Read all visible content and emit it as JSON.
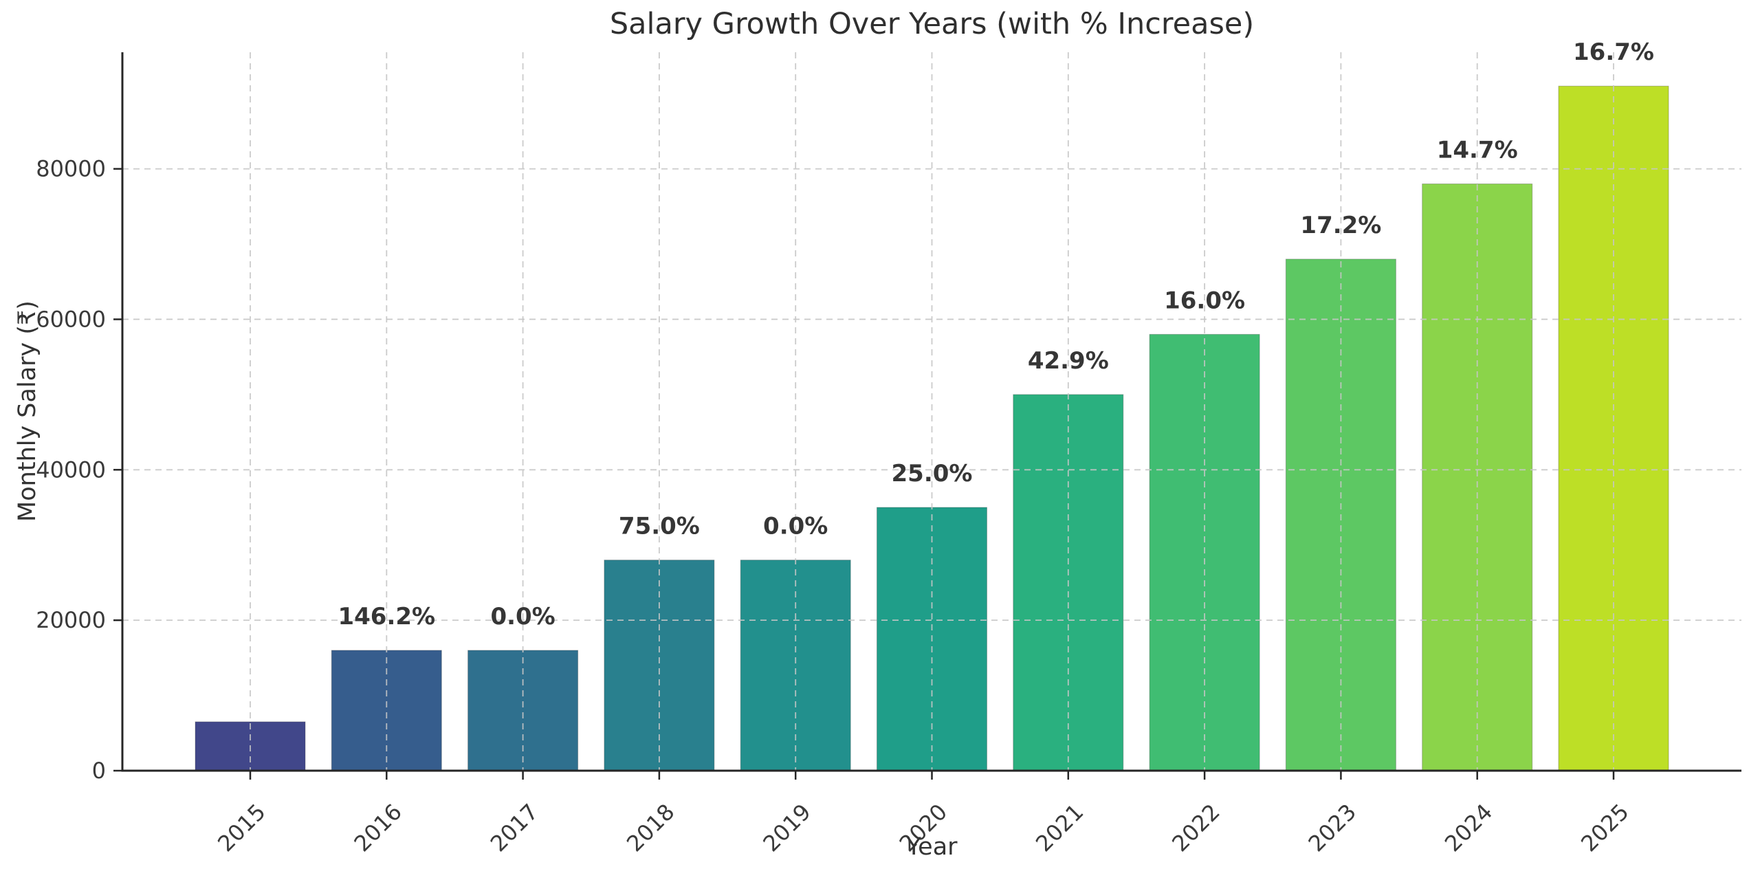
{
  "chart_data": {
    "type": "bar",
    "title": "Salary Growth Over Years (with % Increase)",
    "xlabel": "Year",
    "ylabel": "Monthly Salary (₹)",
    "categories": [
      "2015",
      "2016",
      "2017",
      "2018",
      "2019",
      "2020",
      "2021",
      "2022",
      "2023",
      "2024",
      "2025"
    ],
    "values": [
      6500,
      16000,
      16000,
      28000,
      28000,
      35000,
      50000,
      58000,
      68000,
      78000,
      91000
    ],
    "bar_labels": [
      "",
      "146.2%",
      "0.0%",
      "75.0%",
      "0.0%",
      "25.0%",
      "42.9%",
      "16.0%",
      "17.2%",
      "14.7%",
      "16.7%"
    ],
    "bar_colors": [
      "#41478a",
      "#365d8d",
      "#2f708e",
      "#29808e",
      "#22908d",
      "#1f9e89",
      "#2ab07f",
      "#40bd72",
      "#5dc863",
      "#8bd44a",
      "#bddf26"
    ],
    "yticks": [
      0,
      20000,
      40000,
      60000,
      80000
    ],
    "ylim": [
      0,
      95500
    ],
    "x_tick_rotation": 45,
    "grid": "dashed gridlines, horizontal and vertical, drawn over bars",
    "legend": "none",
    "colors": {
      "background": "#ffffff",
      "axis": "#262626",
      "grid": "#c6c6c6",
      "tick_text": "#3a3a3a",
      "bar_label_text": "#363636",
      "title_text": "#2f2f2f"
    }
  }
}
